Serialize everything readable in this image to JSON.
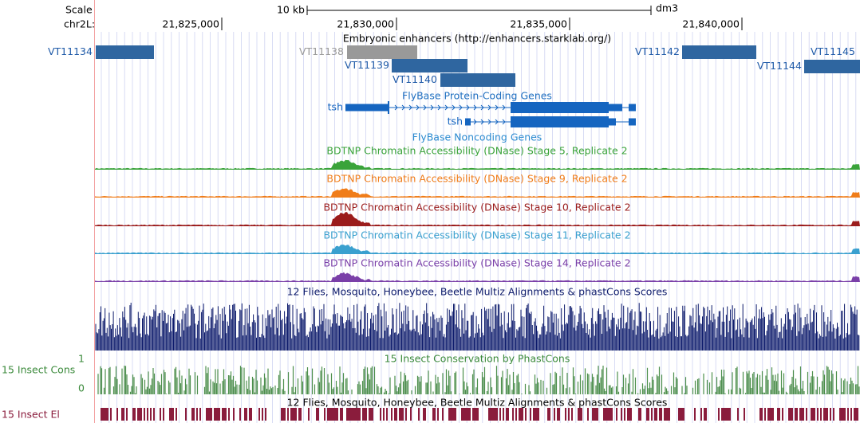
{
  "ruler": {
    "scale_label": "Scale",
    "scale_bar": "10 kb",
    "assembly": "dm3",
    "chrom": "chr2L:",
    "positions": [
      "21,825,000",
      "21,830,000",
      "21,835,000",
      "21,840,000"
    ]
  },
  "tracks": {
    "enhancers": {
      "title": "Embryonic enhancers (http://enhancers.starklab.org/)",
      "items": [
        "VT11134",
        "VT11138",
        "VT11139",
        "VT11140",
        "VT11142",
        "VT11144",
        "VT11145"
      ]
    },
    "protein_genes": {
      "title": "FlyBase Protein-Coding Genes",
      "genes": [
        "tsh",
        "tsh"
      ]
    },
    "noncoding_genes": {
      "title": "FlyBase Noncoding Genes"
    },
    "dnase": [
      "BDTNP Chromatin Accessibility (DNase) Stage 5, Replicate 2",
      "BDTNP Chromatin Accessibility (DNase) Stage 9, Replicate 2",
      "BDTNP Chromatin Accessibility (DNase) Stage 10, Replicate 2",
      "BDTNP Chromatin Accessibility (DNase) Stage 11, Replicate 2",
      "BDTNP Chromatin Accessibility (DNase) Stage 14, Replicate 2"
    ],
    "multiz": {
      "title": "12 Flies, Mosquito, Honeybee, Beetle Multiz Alignments & phastCons Scores"
    },
    "phastcons": {
      "title": "15 Insect Conservation by PhastCons",
      "side_label": "15 Insect Cons",
      "max_label": "1",
      "min_label": "0"
    },
    "elements": {
      "title": "12 Flies, Mosquito, Honeybee, Beetle Multiz Alignments & phastCons Scores",
      "side_label": "15 Insect El"
    }
  }
}
